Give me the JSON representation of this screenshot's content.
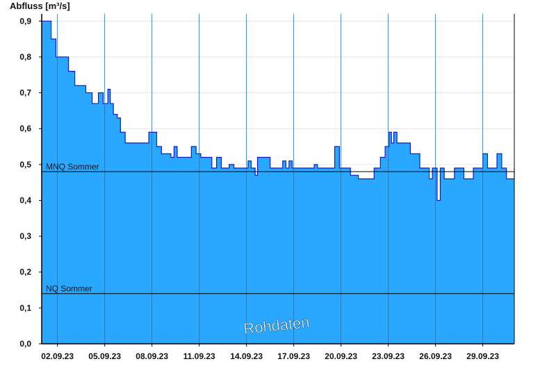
{
  "chart_data": {
    "type": "area",
    "ylabel": "Abfluss [m³/s]",
    "ylim": [
      0,
      0.92
    ],
    "y_ticks": [
      "0,0",
      "0,1",
      "0,2",
      "0,3",
      "0,4",
      "0,5",
      "0,6",
      "0,7",
      "0,8",
      "0,9"
    ],
    "y_tick_values": [
      0,
      0.1,
      0.2,
      0.3,
      0.4,
      0.5,
      0.6,
      0.7,
      0.8,
      0.9
    ],
    "x_range_days": [
      1,
      31
    ],
    "x_ticks": [
      "02.09.23",
      "05.09.23",
      "08.09.23",
      "11.09.23",
      "14.09.23",
      "17.09.23",
      "20.09.23",
      "23.09.23",
      "26.09.23",
      "29.09.23"
    ],
    "x_tick_days": [
      2,
      5,
      8,
      11,
      14,
      17,
      20,
      23,
      26,
      29
    ],
    "area_color": "#2aa8ff",
    "line_color": "#0a1acc",
    "reference_lines": [
      {
        "label": "MNQ Sommer",
        "value": 0.48
      },
      {
        "label": "NQ Sommer",
        "value": 0.14
      }
    ],
    "watermark": "Rohdaten",
    "x": [
      1,
      1.3,
      1.6,
      1.9,
      2.3,
      2.7,
      3.1,
      3.5,
      3.8,
      4.2,
      4.6,
      4.9,
      5.05,
      5.2,
      5.35,
      5.55,
      5.8,
      6,
      6.3,
      6.6,
      6.9,
      7.4,
      7.8,
      8,
      8.3,
      8.6,
      8.9,
      9.2,
      9.4,
      9.6,
      9.8,
      10.1,
      10.5,
      10.8,
      11.1,
      11.5,
      11.8,
      12.1,
      12.4,
      12.7,
      12.9,
      13.2,
      13.5,
      13.8,
      14.1,
      14.3,
      14.55,
      14.7,
      14.9,
      15.2,
      15.5,
      15.8,
      16.1,
      16.3,
      16.5,
      16.7,
      16.9,
      17.2,
      17.5,
      17.8,
      18.1,
      18.3,
      18.5,
      18.7,
      19,
      19.3,
      19.6,
      19.9,
      20.2,
      20.4,
      20.6,
      20.8,
      21.1,
      21.4,
      21.7,
      22.1,
      22.5,
      22.8,
      23.05,
      23.2,
      23.35,
      23.55,
      23.8,
      24.1,
      24.4,
      24.7,
      25,
      25.3,
      25.6,
      25.8,
      26.1,
      26.3,
      26.55,
      26.8,
      27.2,
      27.5,
      27.8,
      28.1,
      28.4,
      28.7,
      29,
      29.3,
      29.6,
      29.9,
      30.2,
      30.5,
      30.8,
      31
    ],
    "y": [
      0.9,
      0.9,
      0.85,
      0.8,
      0.8,
      0.76,
      0.72,
      0.72,
      0.7,
      0.67,
      0.7,
      0.67,
      0.67,
      0.71,
      0.67,
      0.64,
      0.63,
      0.59,
      0.56,
      0.56,
      0.56,
      0.56,
      0.59,
      0.59,
      0.55,
      0.53,
      0.53,
      0.52,
      0.55,
      0.52,
      0.52,
      0.52,
      0.55,
      0.53,
      0.52,
      0.52,
      0.49,
      0.52,
      0.49,
      0.49,
      0.5,
      0.49,
      0.49,
      0.49,
      0.51,
      0.49,
      0.47,
      0.52,
      0.52,
      0.52,
      0.49,
      0.49,
      0.49,
      0.51,
      0.49,
      0.51,
      0.49,
      0.49,
      0.49,
      0.49,
      0.49,
      0.5,
      0.49,
      0.49,
      0.49,
      0.49,
      0.55,
      0.49,
      0.49,
      0.49,
      0.47,
      0.47,
      0.46,
      0.46,
      0.46,
      0.49,
      0.52,
      0.55,
      0.59,
      0.56,
      0.59,
      0.56,
      0.56,
      0.56,
      0.53,
      0.53,
      0.49,
      0.49,
      0.46,
      0.49,
      0.4,
      0.49,
      0.46,
      0.46,
      0.49,
      0.49,
      0.46,
      0.46,
      0.49,
      0.49,
      0.53,
      0.49,
      0.49,
      0.53,
      0.49,
      0.46,
      0.46,
      0.49
    ]
  }
}
